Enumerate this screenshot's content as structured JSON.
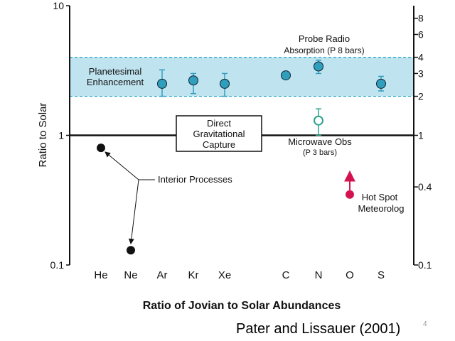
{
  "chart_data": {
    "type": "scatter",
    "title": "",
    "xlabel": "Ratio of Jovian to Solar Abundances",
    "ylabel": "Ratio to Solar",
    "yscale": "log",
    "ylim": [
      0.1,
      10
    ],
    "categories": [
      "He",
      "Ne",
      "Ar",
      "Kr",
      "Xe",
      "C",
      "N",
      "O",
      "S"
    ],
    "left_ticks": [
      "10",
      "1",
      "0.1"
    ],
    "right_ticks": [
      "8",
      "6",
      "4",
      "3",
      "2",
      "1",
      "0.4",
      "0.1"
    ],
    "band": {
      "label_line1": "Planetesimal",
      "label_line2": "Enhancement",
      "range": [
        2,
        4
      ]
    },
    "reference_line": {
      "y": 1
    },
    "series": [
      {
        "points": [
          {
            "x": "Ar",
            "y": 2.5,
            "err_low": 2.0,
            "err_high": 3.2
          },
          {
            "x": "Kr",
            "y": 2.65,
            "err_low": 2.1,
            "err_high": 3.0
          },
          {
            "x": "Xe",
            "y": 2.5,
            "err_low": 2.0,
            "err_high": 3.0
          },
          {
            "x": "C",
            "y": 2.9
          },
          {
            "x": "N",
            "y": 3.4,
            "err_low": 3.0,
            "err_high": 3.8
          },
          {
            "x": "S",
            "y": 2.5,
            "err_low": 2.2,
            "err_high": 2.85
          }
        ]
      },
      {
        "points": [
          {
            "x": "N",
            "y": 1.3,
            "err_low": 1.0,
            "err_high": 1.6
          }
        ]
      },
      {
        "points": [
          {
            "x": "He",
            "y": 0.8
          },
          {
            "x": "Ne",
            "y": 0.13
          }
        ]
      },
      {
        "points": [
          {
            "x": "O",
            "y": 0.35,
            "arrow": "up"
          }
        ]
      }
    ],
    "annotations": {
      "direct_capture": [
        "Direct",
        "Gravitational",
        "Capture"
      ],
      "probe_radio": [
        "Probe Radio",
        "Absorption (P   8 bars)"
      ],
      "microwave": [
        "Microwave Obs",
        "(P   3 bars)"
      ],
      "interior": "Interior Processes",
      "hot_spot": [
        "Hot Spot",
        "Meteorolog"
      ]
    }
  },
  "citation": "Pater and  Lissauer (2001)",
  "slide_number": "4",
  "colors": {
    "band_fill": "#bfe3ef",
    "band_border": "#27a5c6",
    "band_text": "#1a9bc0",
    "point_teal": "#2f9fbd",
    "microwave_green": "#2aa28c",
    "hot_spot": "#d3134f",
    "black": "#111111"
  }
}
